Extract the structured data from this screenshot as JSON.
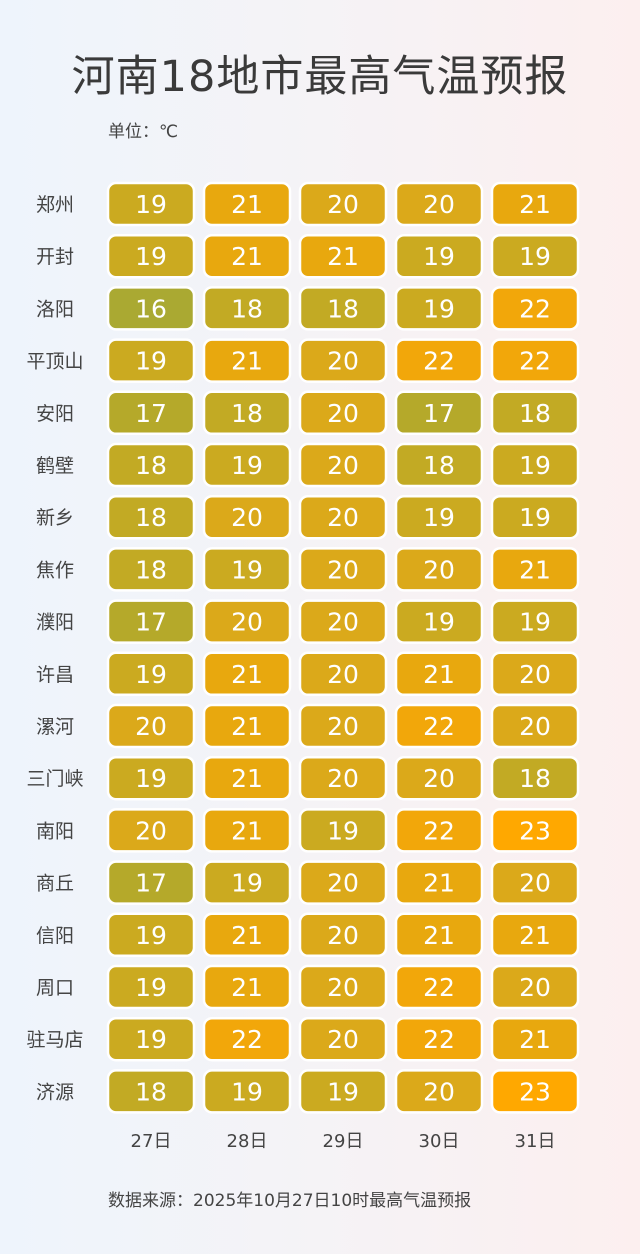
{
  "title": "河南18地市最高气温预报",
  "unit": "单位：℃",
  "source": "数据来源：2025年10月27日10时最高气温预报",
  "chart_data": {
    "type": "heatmap",
    "categories": [
      "27日",
      "28日",
      "29日",
      "30日",
      "31日"
    ],
    "rows": [
      "郑州",
      "开封",
      "洛阳",
      "平顶山",
      "安阳",
      "鹤壁",
      "新乡",
      "焦作",
      "濮阳",
      "许昌",
      "漯河",
      "三门峡",
      "南阳",
      "商丘",
      "信阳",
      "周口",
      "驻马店",
      "济源"
    ],
    "values": [
      [
        19,
        21,
        20,
        20,
        21
      ],
      [
        19,
        21,
        21,
        19,
        19
      ],
      [
        16,
        18,
        18,
        19,
        22
      ],
      [
        19,
        21,
        20,
        22,
        22
      ],
      [
        17,
        18,
        20,
        17,
        18
      ],
      [
        18,
        19,
        20,
        18,
        19
      ],
      [
        18,
        20,
        20,
        19,
        19
      ],
      [
        18,
        19,
        20,
        20,
        21
      ],
      [
        17,
        20,
        20,
        19,
        19
      ],
      [
        19,
        21,
        20,
        21,
        20
      ],
      [
        20,
        21,
        20,
        22,
        20
      ],
      [
        19,
        21,
        20,
        20,
        18
      ],
      [
        20,
        21,
        19,
        22,
        23
      ],
      [
        17,
        19,
        20,
        21,
        20
      ],
      [
        19,
        21,
        20,
        21,
        21
      ],
      [
        19,
        21,
        20,
        22,
        20
      ],
      [
        19,
        22,
        20,
        22,
        21
      ],
      [
        18,
        19,
        19,
        20,
        23
      ]
    ],
    "color_scale": {
      "16": "#aaa932",
      "17": "#b5a92a",
      "18": "#c2aa24",
      "19": "#cbaa20",
      "20": "#dba91a",
      "21": "#e8a80e",
      "22": "#f2a70a",
      "23": "#ffa800"
    },
    "value_text_color": "#ffffff"
  }
}
